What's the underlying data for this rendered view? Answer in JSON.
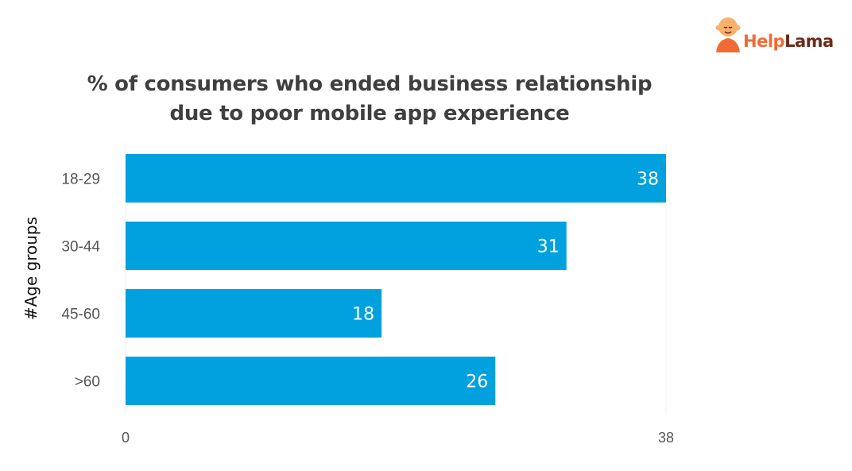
{
  "brand": {
    "name_part1": "Help",
    "name_part2": "Lama",
    "logo_icon": "monk-icon"
  },
  "chart_data": {
    "type": "bar",
    "orientation": "horizontal",
    "title_line1": "% of consumers who ended business relationship",
    "title_line2": "due to poor mobile app experience",
    "xlabel": "",
    "ylabel": "#Age groups",
    "categories": [
      "18-29",
      "30-44",
      "45-60",
      ">60"
    ],
    "values": [
      38,
      31,
      18,
      26
    ],
    "xlim": [
      0,
      38
    ],
    "x_ticks": [
      "0",
      "38"
    ],
    "bar_color": "#00a1de",
    "data_labels": true,
    "grid": false,
    "legend": "none"
  }
}
